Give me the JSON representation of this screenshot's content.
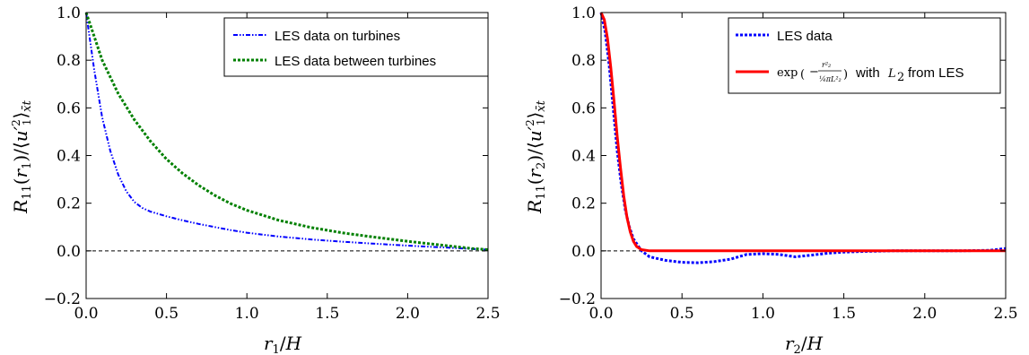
{
  "chart_data": [
    {
      "type": "line",
      "xlabel": "r₁/H",
      "ylabel": "R₁₁(r₁)/⟨u′₁²⟩x̄t",
      "xlim": [
        0.0,
        2.5
      ],
      "ylim": [
        -0.2,
        1.0
      ],
      "xticks": [
        "0.0",
        "0.5",
        "1.0",
        "1.5",
        "2.0",
        "2.5"
      ],
      "yticks": [
        "1.0",
        "0.8",
        "0.6",
        "0.4",
        "0.2",
        "0.0",
        "−0.2"
      ],
      "legend_position": "top-right",
      "reference_line": {
        "y": 0.0,
        "style": "dashed",
        "color": "#000000"
      },
      "series": [
        {
          "name": "LES data on turbines",
          "color": "#0000ff",
          "style": "dashdotdot",
          "x": [
            0.0,
            0.05,
            0.1,
            0.15,
            0.2,
            0.25,
            0.3,
            0.35,
            0.4,
            0.5,
            0.6,
            0.7,
            0.8,
            0.9,
            1.0,
            1.2,
            1.4,
            1.6,
            1.8,
            2.0,
            2.2,
            2.4,
            2.5
          ],
          "y": [
            1.0,
            0.76,
            0.56,
            0.42,
            0.32,
            0.25,
            0.205,
            0.18,
            0.165,
            0.145,
            0.128,
            0.113,
            0.1,
            0.087,
            0.076,
            0.06,
            0.048,
            0.038,
            0.03,
            0.022,
            0.015,
            0.008,
            0.005
          ]
        },
        {
          "name": "LES data between turbines",
          "color": "#008000",
          "style": "dotted",
          "x": [
            0.0,
            0.05,
            0.1,
            0.2,
            0.3,
            0.4,
            0.5,
            0.6,
            0.7,
            0.8,
            0.9,
            1.0,
            1.2,
            1.4,
            1.6,
            1.8,
            2.0,
            2.2,
            2.4,
            2.5
          ],
          "y": [
            1.0,
            0.9,
            0.8,
            0.66,
            0.55,
            0.46,
            0.385,
            0.325,
            0.275,
            0.233,
            0.198,
            0.17,
            0.128,
            0.098,
            0.075,
            0.057,
            0.04,
            0.025,
            0.01,
            0.005
          ]
        }
      ]
    },
    {
      "type": "line",
      "xlabel": "r₂/H",
      "ylabel": "R₁₁(r₂)/⟨u′₁²⟩x̄t",
      "xlim": [
        0.0,
        2.5
      ],
      "ylim": [
        -0.2,
        1.0
      ],
      "xticks": [
        "0.0",
        "0.5",
        "1.0",
        "1.5",
        "2.0",
        "2.5"
      ],
      "yticks": [
        "1.0",
        "0.8",
        "0.6",
        "0.4",
        "0.2",
        "0.0",
        "−0.2"
      ],
      "legend_position": "top-right",
      "reference_line": {
        "y": 0.0,
        "style": "dashed",
        "color": "#000000"
      },
      "series": [
        {
          "name": "LES data",
          "color": "#0000ff",
          "style": "dotted",
          "x": [
            0.0,
            0.025,
            0.05,
            0.075,
            0.1,
            0.125,
            0.15,
            0.175,
            0.2,
            0.25,
            0.3,
            0.4,
            0.5,
            0.6,
            0.7,
            0.8,
            0.9,
            1.0,
            1.1,
            1.2,
            1.3,
            1.4,
            1.5,
            1.6,
            1.8,
            2.0,
            2.2,
            2.4,
            2.5
          ],
          "y": [
            1.0,
            0.92,
            0.78,
            0.6,
            0.42,
            0.28,
            0.17,
            0.1,
            0.05,
            0.0,
            -0.025,
            -0.04,
            -0.048,
            -0.05,
            -0.045,
            -0.035,
            -0.015,
            -0.012,
            -0.015,
            -0.025,
            -0.018,
            -0.01,
            -0.005,
            -0.003,
            0.0,
            0.0,
            0.0,
            0.002,
            0.01
          ]
        },
        {
          "name_prefix": "exp",
          "name_suffix": "with",
          "name_var": "L",
          "name_var_sub": "2",
          "name_tail": "from LES",
          "color": "#ff0000",
          "style": "solid",
          "x": [
            0.0,
            0.02,
            0.04,
            0.06,
            0.08,
            0.1,
            0.12,
            0.14,
            0.16,
            0.18,
            0.2,
            0.22,
            0.25,
            0.3,
            0.5,
            1.0,
            1.5,
            2.0,
            2.5
          ],
          "y": [
            1.0,
            0.97,
            0.89,
            0.77,
            0.63,
            0.48,
            0.35,
            0.23,
            0.14,
            0.08,
            0.04,
            0.018,
            0.005,
            0.0,
            0.0,
            0.0,
            0.0,
            0.0,
            0.0
          ]
        }
      ]
    }
  ]
}
